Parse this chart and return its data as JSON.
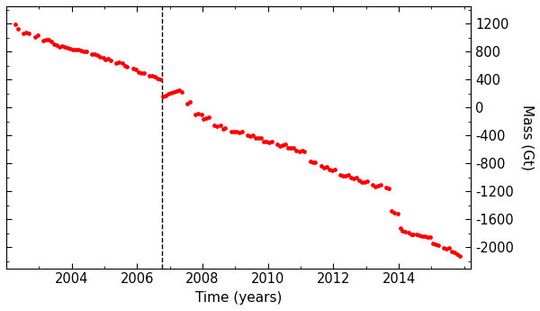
{
  "xlabel": "Time (years)",
  "ylabel": "Mass (Gt)",
  "xlim": [
    2002.0,
    2016.2
  ],
  "ylim": [
    -2300,
    1450
  ],
  "yticks": [
    1200,
    800,
    400,
    0,
    -400,
    -800,
    -1200,
    -1600,
    -2000
  ],
  "xticks": [
    2004,
    2006,
    2008,
    2010,
    2012,
    2014
  ],
  "dashed_vline_x": 2006.75,
  "dot_color": "#ff0000",
  "dot_size": 12,
  "background_color": "#ffffff",
  "data_points": [
    [
      2002.28,
      1190
    ],
    [
      2002.37,
      1130
    ],
    [
      2002.53,
      1060
    ],
    [
      2002.62,
      1075
    ],
    [
      2002.7,
      1065
    ],
    [
      2002.87,
      1010
    ],
    [
      2002.96,
      1040
    ],
    [
      2003.12,
      960
    ],
    [
      2003.2,
      970
    ],
    [
      2003.29,
      975
    ],
    [
      2003.37,
      940
    ],
    [
      2003.45,
      910
    ],
    [
      2003.54,
      900
    ],
    [
      2003.62,
      870
    ],
    [
      2003.71,
      880
    ],
    [
      2003.79,
      875
    ],
    [
      2003.87,
      850
    ],
    [
      2003.96,
      845
    ],
    [
      2004.04,
      830
    ],
    [
      2004.12,
      825
    ],
    [
      2004.2,
      830
    ],
    [
      2004.29,
      820
    ],
    [
      2004.37,
      800
    ],
    [
      2004.45,
      805
    ],
    [
      2004.62,
      760
    ],
    [
      2004.7,
      770
    ],
    [
      2004.79,
      755
    ],
    [
      2004.87,
      730
    ],
    [
      2004.96,
      720
    ],
    [
      2005.04,
      690
    ],
    [
      2005.12,
      695
    ],
    [
      2005.2,
      680
    ],
    [
      2005.37,
      640
    ],
    [
      2005.45,
      645
    ],
    [
      2005.54,
      635
    ],
    [
      2005.62,
      600
    ],
    [
      2005.7,
      590
    ],
    [
      2005.87,
      555
    ],
    [
      2005.96,
      550
    ],
    [
      2006.04,
      510
    ],
    [
      2006.12,
      500
    ],
    [
      2006.2,
      495
    ],
    [
      2006.37,
      455
    ],
    [
      2006.45,
      450
    ],
    [
      2006.54,
      445
    ],
    [
      2006.62,
      420
    ],
    [
      2006.7,
      410
    ],
    [
      2006.79,
      160
    ],
    [
      2006.87,
      175
    ],
    [
      2006.96,
      200
    ],
    [
      2007.04,
      210
    ],
    [
      2007.12,
      225
    ],
    [
      2007.2,
      235
    ],
    [
      2007.29,
      245
    ],
    [
      2007.37,
      220
    ],
    [
      2007.54,
      60
    ],
    [
      2007.62,
      80
    ],
    [
      2007.79,
      -100
    ],
    [
      2007.87,
      -90
    ],
    [
      2007.96,
      -100
    ],
    [
      2008.04,
      -160
    ],
    [
      2008.12,
      -150
    ],
    [
      2008.2,
      -140
    ],
    [
      2008.37,
      -250
    ],
    [
      2008.45,
      -260
    ],
    [
      2008.54,
      -250
    ],
    [
      2008.62,
      -300
    ],
    [
      2008.7,
      -290
    ],
    [
      2008.87,
      -340
    ],
    [
      2008.96,
      -350
    ],
    [
      2009.04,
      -350
    ],
    [
      2009.12,
      -360
    ],
    [
      2009.2,
      -350
    ],
    [
      2009.37,
      -400
    ],
    [
      2009.45,
      -410
    ],
    [
      2009.54,
      -400
    ],
    [
      2009.62,
      -430
    ],
    [
      2009.7,
      -440
    ],
    [
      2009.79,
      -430
    ],
    [
      2009.87,
      -480
    ],
    [
      2009.96,
      -490
    ],
    [
      2010.04,
      -500
    ],
    [
      2010.12,
      -490
    ],
    [
      2010.29,
      -530
    ],
    [
      2010.37,
      -545
    ],
    [
      2010.45,
      -540
    ],
    [
      2010.54,
      -530
    ],
    [
      2010.62,
      -570
    ],
    [
      2010.7,
      -580
    ],
    [
      2010.79,
      -570
    ],
    [
      2010.87,
      -620
    ],
    [
      2010.96,
      -630
    ],
    [
      2011.04,
      -620
    ],
    [
      2011.12,
      -630
    ],
    [
      2011.29,
      -770
    ],
    [
      2011.37,
      -785
    ],
    [
      2011.45,
      -780
    ],
    [
      2011.62,
      -840
    ],
    [
      2011.7,
      -855
    ],
    [
      2011.79,
      -845
    ],
    [
      2011.87,
      -890
    ],
    [
      2011.96,
      -900
    ],
    [
      2012.04,
      -890
    ],
    [
      2012.2,
      -960
    ],
    [
      2012.29,
      -975
    ],
    [
      2012.37,
      -970
    ],
    [
      2012.45,
      -960
    ],
    [
      2012.54,
      -1000
    ],
    [
      2012.62,
      -1010
    ],
    [
      2012.7,
      -1000
    ],
    [
      2012.79,
      -1040
    ],
    [
      2012.87,
      -1060
    ],
    [
      2012.96,
      -1060
    ],
    [
      2013.04,
      -1050
    ],
    [
      2013.2,
      -1110
    ],
    [
      2013.29,
      -1125
    ],
    [
      2013.37,
      -1120
    ],
    [
      2013.45,
      -1110
    ],
    [
      2013.62,
      -1150
    ],
    [
      2013.7,
      -1160
    ],
    [
      2013.79,
      -1480
    ],
    [
      2013.87,
      -1510
    ],
    [
      2013.96,
      -1520
    ],
    [
      2014.04,
      -1730
    ],
    [
      2014.12,
      -1760
    ],
    [
      2014.2,
      -1780
    ],
    [
      2014.29,
      -1790
    ],
    [
      2014.37,
      -1810
    ],
    [
      2014.45,
      -1820
    ],
    [
      2014.54,
      -1810
    ],
    [
      2014.62,
      -1830
    ],
    [
      2014.7,
      -1840
    ],
    [
      2014.79,
      -1840
    ],
    [
      2014.87,
      -1850
    ],
    [
      2014.96,
      -1855
    ],
    [
      2015.04,
      -1940
    ],
    [
      2015.12,
      -1960
    ],
    [
      2015.2,
      -1970
    ],
    [
      2015.37,
      -2010
    ],
    [
      2015.45,
      -2020
    ],
    [
      2015.54,
      -2010
    ],
    [
      2015.62,
      -2060
    ],
    [
      2015.7,
      -2070
    ],
    [
      2015.79,
      -2100
    ],
    [
      2015.87,
      -2120
    ]
  ]
}
